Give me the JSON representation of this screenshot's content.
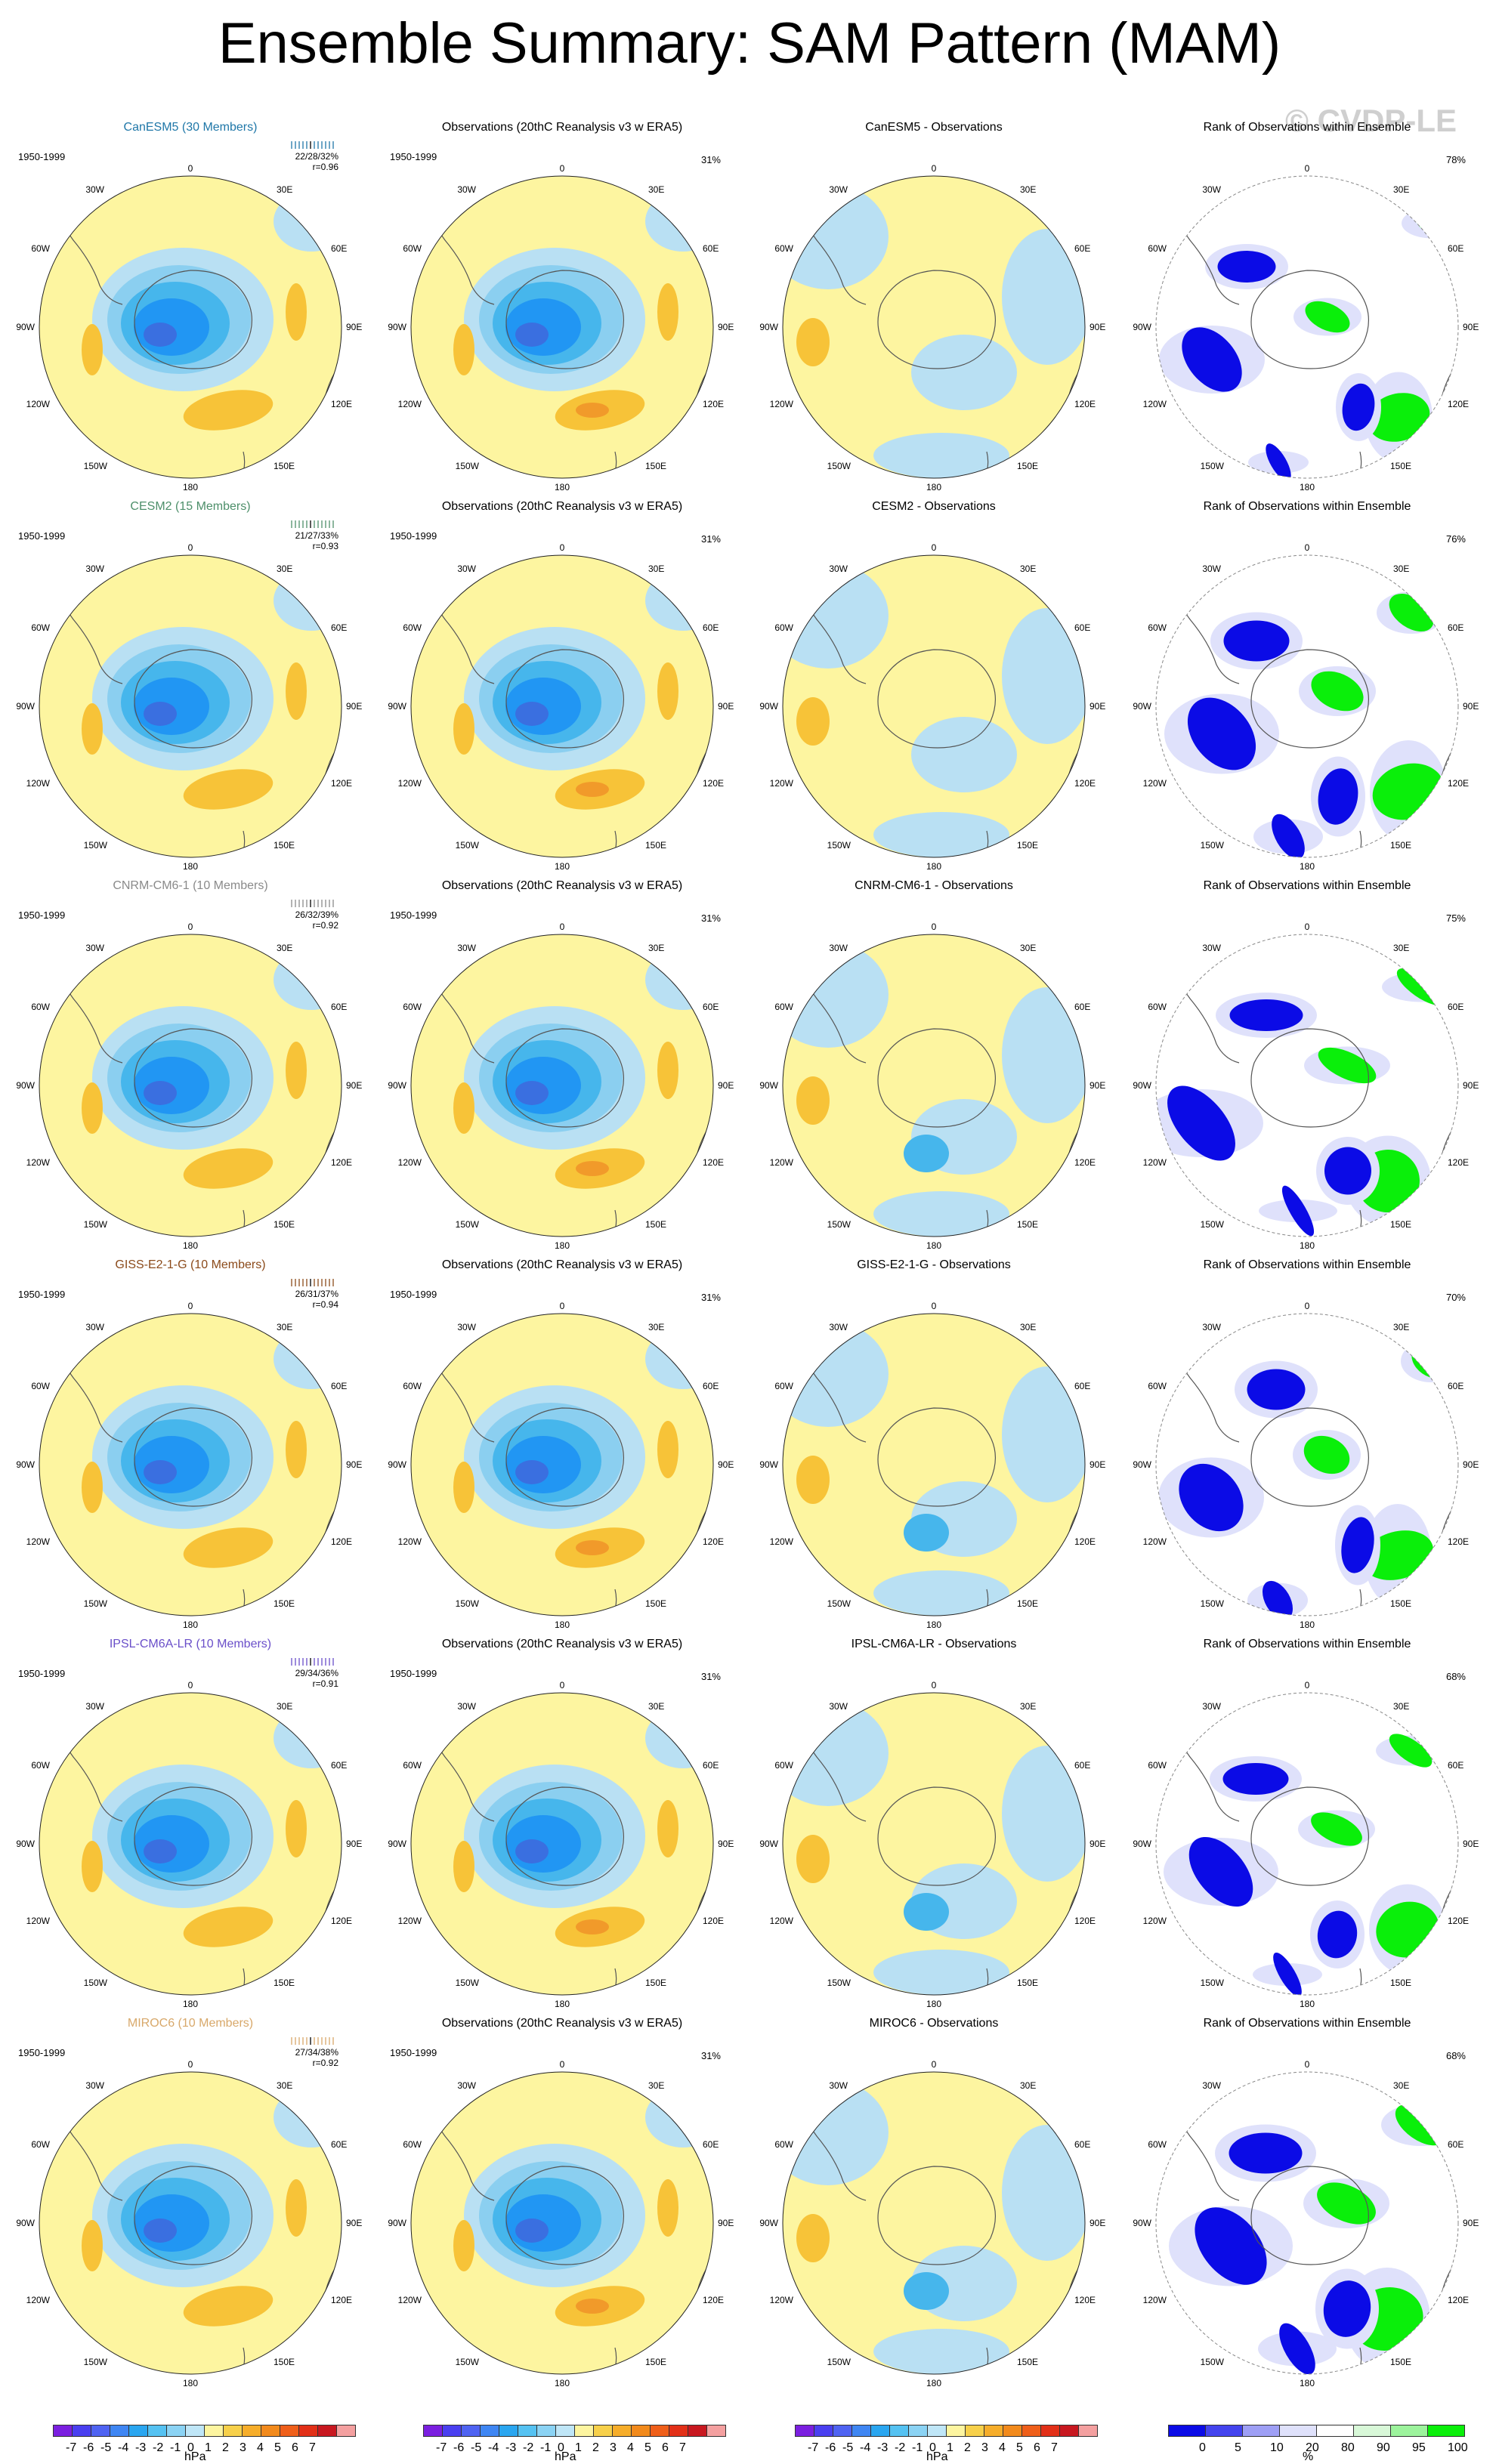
{
  "title": "Ensemble Summary: SAM Pattern (MAM)",
  "watermark": "© CVDP-LE",
  "period": "1950-1999",
  "colors": {
    "yellow": "#fdf5a0",
    "lightblue": "#b9e0f3",
    "blue1": "#8bcff0",
    "blue2": "#46b6ec",
    "blue3": "#2196f3",
    "blue4": "#3a6fe0",
    "orange": "#f7c338",
    "darkorange": "#f19a2a",
    "rankblue": "#0b0be6",
    "rankpale": "#dfe1fb",
    "rankgreen": "#0aef0a",
    "rankpalegreen": "#d8f8d8",
    "coast": "#555555"
  },
  "obs_title": "Observations (20thC Reanalysis v3 w ERA5)",
  "obs_pct": "31%",
  "rank_title": "Rank of Observations within Ensemble",
  "lon_labels": {
    "top": "0",
    "top_right": "30E",
    "right_upper": "60E",
    "right": "90E",
    "right_lower": "120E",
    "bottom_right": "150E",
    "bottom": "180",
    "bottom_left": "150W",
    "left_lower": "120W",
    "left": "90W",
    "left_upper": "60W",
    "top_left": "30W"
  },
  "models": [
    {
      "name": "CanESM5",
      "members_label": "CanESM5 (30 Members)",
      "color": "#1f77a8",
      "stats": "22/28/32%",
      "r": "r=0.96",
      "diff_title": "CanESM5 - Observations",
      "rank_pct": "78%"
    },
    {
      "name": "CESM2",
      "members_label": "CESM2 (15 Members)",
      "color": "#4d8f6a",
      "stats": "21/27/33%",
      "r": "r=0.93",
      "diff_title": "CESM2 - Observations",
      "rank_pct": "76%"
    },
    {
      "name": "CNRM-CM6-1",
      "members_label": "CNRM-CM6-1 (10 Members)",
      "color": "#8a8a8a",
      "stats": "26/32/39%",
      "r": "r=0.92",
      "diff_title": "CNRM-CM6-1 - Observations",
      "rank_pct": "75%"
    },
    {
      "name": "GISS-E2-1-G",
      "members_label": "GISS-E2-1-G (10 Members)",
      "color": "#8b4a1a",
      "stats": "26/31/37%",
      "r": "r=0.94",
      "diff_title": "GISS-E2-1-G - Observations",
      "rank_pct": "70%"
    },
    {
      "name": "IPSL-CM6A-LR",
      "members_label": "IPSL-CM6A-LR (10 Members)",
      "color": "#6a4fc9",
      "stats": "29/34/36%",
      "r": "r=0.91",
      "diff_title": "IPSL-CM6A-LR - Observations",
      "rank_pct": "68%"
    },
    {
      "name": "MIROC6",
      "members_label": "MIROC6 (10 Members)",
      "color": "#d8a86a",
      "stats": "27/34/38%",
      "r": "r=0.92",
      "diff_title": "MIROC6 - Observations",
      "rank_pct": "68%"
    }
  ],
  "colorbar_hpa": {
    "labels": [
      "-7",
      "-6",
      "-5",
      "-4",
      "-3",
      "-2",
      "-1",
      "0",
      "1",
      "2",
      "3",
      "4",
      "5",
      "6",
      "7"
    ],
    "unit": "hPa",
    "colors": [
      "#7b1fe0",
      "#4a3ff0",
      "#4f63f2",
      "#3f86f3",
      "#2aa6f0",
      "#55c2f2",
      "#8bd3f4",
      "#bfe6f7",
      "#fdf5a0",
      "#f7d04a",
      "#f6ad2a",
      "#f28a1c",
      "#ef5f1a",
      "#e23018",
      "#c81820",
      "#f4a0a0"
    ]
  },
  "colorbar_rank": {
    "labels": [
      "0",
      "5",
      "10",
      "20",
      "80",
      "90",
      "95",
      "100"
    ],
    "unit": "%",
    "colors": [
      "#0b0be6",
      "#4444ee",
      "#9e9ff5",
      "#dfe1fb",
      "#ffffff",
      "#d8f8d8",
      "#9cf39c",
      "#0aef0a"
    ]
  }
}
